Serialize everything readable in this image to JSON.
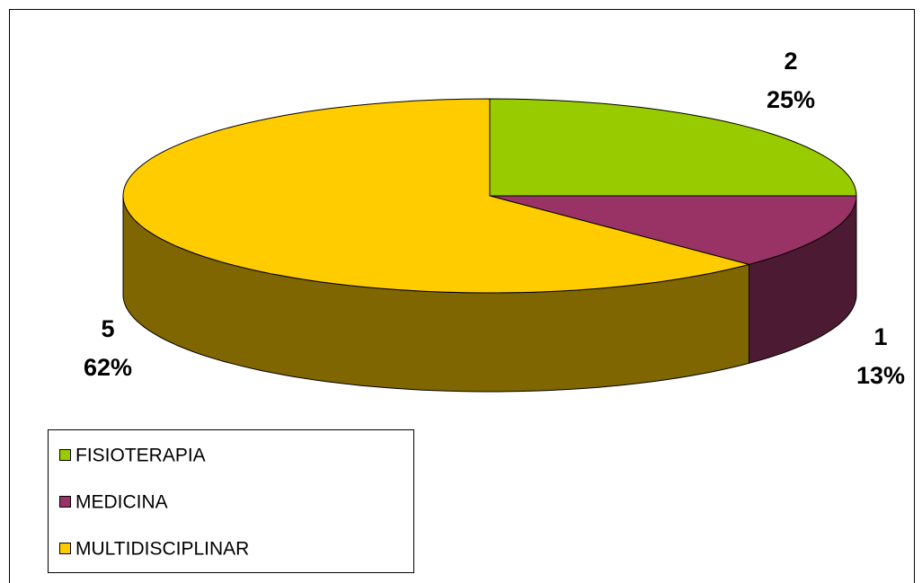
{
  "chart_data": {
    "type": "pie3d",
    "categories": [
      "FISIOTERAPIA",
      "MEDICINA",
      "MULTIDISCIPLINAR"
    ],
    "values": [
      2,
      1,
      5
    ],
    "percent_labels": [
      "25%",
      "13%",
      "62%"
    ],
    "colors": [
      "#99cc00",
      "#993366",
      "#ffcc00"
    ],
    "legend": "bottom-left"
  }
}
